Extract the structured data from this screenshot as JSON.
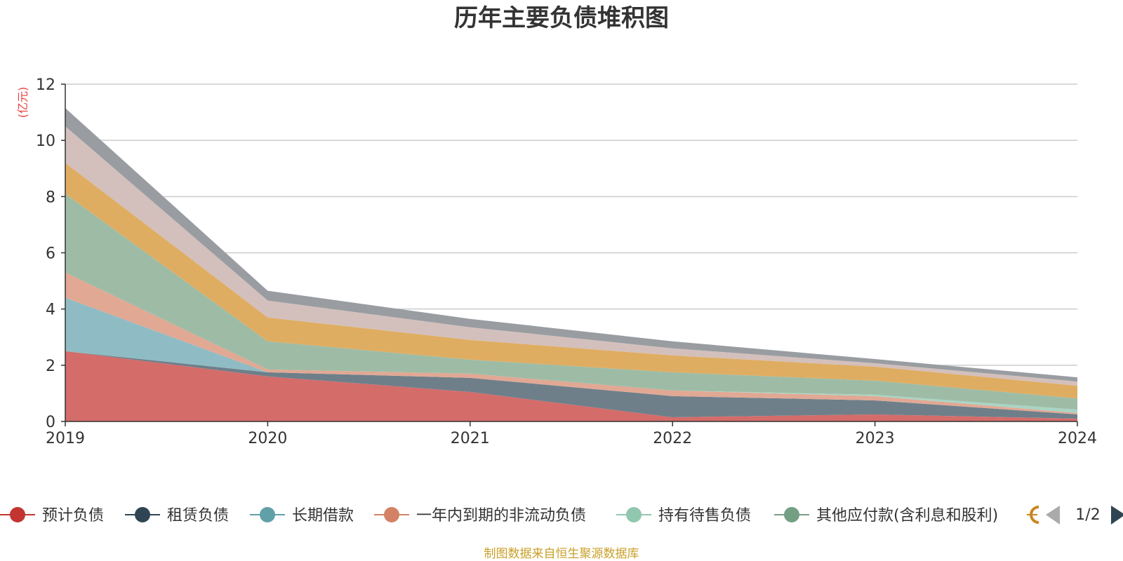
{
  "chart_data": {
    "type": "area",
    "stacked": true,
    "title": "历年主要负债堆积图",
    "y_unit": "(亿元)",
    "x": [
      "2019",
      "2020",
      "2021",
      "2022",
      "2023",
      "2024"
    ],
    "ylim": [
      0,
      12
    ],
    "y_ticks": [
      0,
      2,
      4,
      6,
      8,
      10,
      12
    ],
    "grid": true,
    "legend_position": "bottom",
    "series": [
      {
        "name": "预计负债",
        "color": "#d46c6a",
        "marker_color": "#c23531",
        "values": [
          2.5,
          1.6,
          1.05,
          0.15,
          0.25,
          0.1
        ]
      },
      {
        "name": "租赁负债",
        "color": "#6e7f8a",
        "marker_color": "#2f4554",
        "values": [
          0.0,
          0.15,
          0.5,
          0.75,
          0.5,
          0.15
        ]
      },
      {
        "name": "长期借款",
        "color": "#8fbcc4",
        "marker_color": "#61a0a8",
        "values": [
          1.9,
          0.0,
          0.0,
          0.0,
          0.0,
          0.0
        ]
      },
      {
        "name": "一年内到期的非流动负债",
        "color": "#e1a894",
        "marker_color": "#d48265",
        "values": [
          0.9,
          0.1,
          0.15,
          0.2,
          0.15,
          0.05
        ]
      },
      {
        "name": "持有待售负债",
        "color": "#a9d4c4",
        "marker_color": "#91c7ae",
        "values": [
          0.0,
          0.0,
          0.0,
          0.0,
          0.05,
          0.12
        ]
      },
      {
        "name": "其他应付款(含利息和股利)",
        "color": "#9ebca5",
        "marker_color": "#749f83",
        "values": [
          2.8,
          1.0,
          0.5,
          0.65,
          0.5,
          0.4
        ]
      },
      {
        "name": "",
        "color": "#dfad62",
        "marker_color": "#ca8622",
        "values": [
          1.1,
          0.85,
          0.7,
          0.6,
          0.5,
          0.45
        ]
      },
      {
        "name": "",
        "color": "#d3c0bc",
        "marker_color": "#bda29a",
        "values": [
          1.3,
          0.6,
          0.45,
          0.25,
          0.12,
          0.15
        ]
      },
      {
        "name": "",
        "color": "#999da2",
        "marker_color": "#6e7074",
        "values": [
          0.65,
          0.35,
          0.3,
          0.25,
          0.15,
          0.15
        ]
      }
    ]
  },
  "legend": {
    "page_indicator": "1/2"
  },
  "footer": {
    "source": "制图数据来自恒生聚源数据库"
  }
}
